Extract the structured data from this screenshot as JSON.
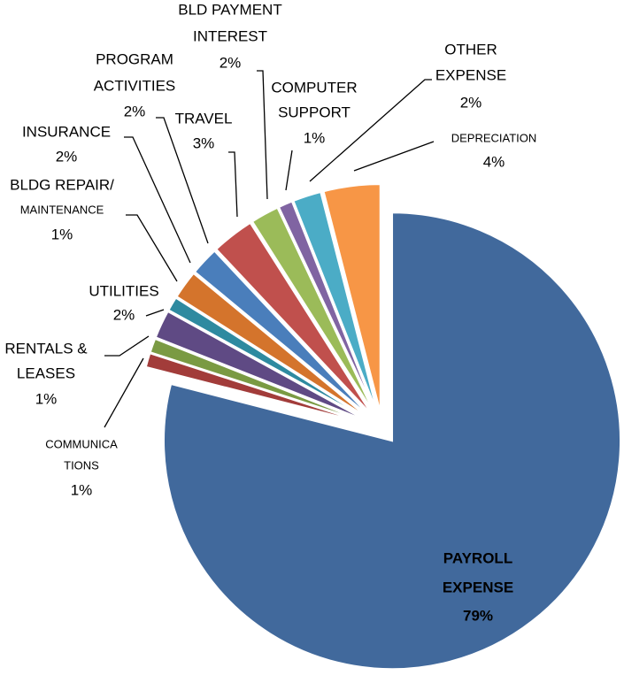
{
  "chart_data": {
    "type": "pie",
    "categories": [
      [
        "PAYROLL",
        "EXPENSE"
      ],
      [
        "COMMUNICA",
        "TIONS"
      ],
      [
        "RENTALS &",
        "LEASES"
      ],
      [
        "UTILITIES"
      ],
      [
        "BLDG REPAIR/",
        "MAINTENANCE"
      ],
      [
        "INSURANCE"
      ],
      [
        "PROGRAM",
        "ACTIVITIES"
      ],
      [
        "TRAVEL"
      ],
      [
        "BLD PAYMENT",
        "INTEREST"
      ],
      [
        "COMPUTER",
        "SUPPORT"
      ],
      [
        "OTHER",
        "EXPENSE"
      ],
      [
        "DEPRECIATION"
      ]
    ],
    "values": [
      79,
      1,
      1,
      2,
      1,
      2,
      2,
      3,
      2,
      1,
      2,
      4
    ],
    "value_labels": [
      "79%",
      "1%",
      "1%",
      "2%",
      "1%",
      "2%",
      "2%",
      "3%",
      "2%",
      "1%",
      "2%",
      "4%"
    ],
    "colors": [
      "#41699c",
      "#a23c3a",
      "#7a9a43",
      "#5f4a84",
      "#2e8aa0",
      "#d4742c",
      "#4a7ebb",
      "#c0504d",
      "#9bbb59",
      "#8064a2",
      "#4bacc6",
      "#f79646"
    ]
  }
}
